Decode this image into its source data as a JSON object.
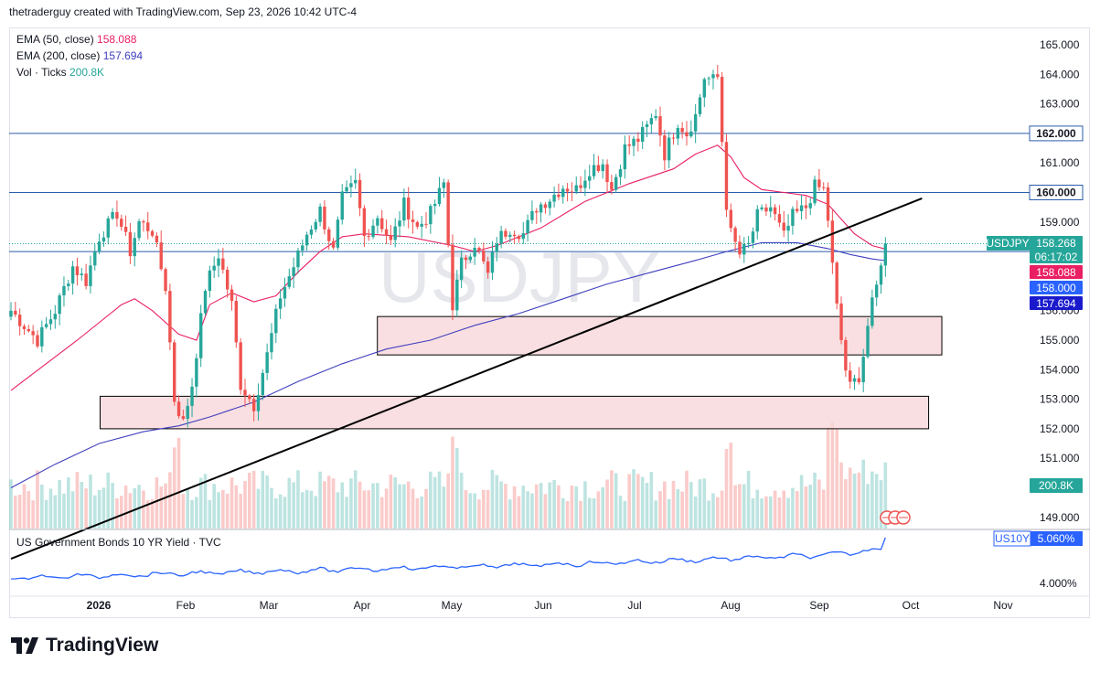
{
  "header": {
    "attribution": "thetraderguy created with TradingView.com, Sep 23, 2026 10:42 UTC-4"
  },
  "legend": {
    "ema50_label": "EMA (50, close)",
    "ema50_value": "158.088",
    "ema200_label": "EMA (200, close)",
    "ema200_value": "157.694",
    "vol_label": "Vol · Ticks",
    "vol_value": "200.8K"
  },
  "watermark": "USDJPY",
  "lower_pane": {
    "label": "US Government Bonds 10 YR Yield · TVC",
    "badge_symbol": "US10Y",
    "badge_value": "5.060%",
    "axis_tick": "4.000%"
  },
  "footer": {
    "brand": "TradingView"
  },
  "colors": {
    "up": "#26a69a",
    "down": "#ef5350",
    "ema50": "#e91e63",
    "ema200": "#3f3fbf",
    "zone": "#f8d7da",
    "hline": "#2a5caa",
    "trend": "#000000",
    "yield": "#2962ff"
  },
  "chart_data": {
    "type": "candlestick",
    "symbol": "USDJPY",
    "y_ticks": [
      149,
      150,
      151,
      152,
      153,
      154,
      155,
      156,
      157,
      158,
      159,
      160,
      161,
      162,
      163,
      164,
      165
    ],
    "y_tick_labels": [
      "149.000",
      "",
      "151.000",
      "152.000",
      "153.000",
      "154.000",
      "155.000",
      "156.000",
      "",
      "",
      "159.000",
      "",
      "161.000",
      "",
      "163.000",
      "164.000",
      "165.000"
    ],
    "x_ticks": [
      "2026",
      "Feb",
      "Mar",
      "Apr",
      "May",
      "Jun",
      "Jul",
      "Aug",
      "Sep",
      "Oct",
      "Nov"
    ],
    "horizontal_levels": [
      {
        "value": 162.0,
        "label": "162.000"
      },
      {
        "value": 160.0,
        "label": "160.000"
      }
    ],
    "zones": [
      {
        "from": 154.5,
        "to": 155.8,
        "start": "2026-04-22",
        "end": "2026-10-10"
      },
      {
        "from": 152.0,
        "to": 153.1,
        "start": "2026-01-28",
        "end": "2026-10-06"
      }
    ],
    "trendline": [
      {
        "date": "2026-01-01",
        "value": 147.6
      },
      {
        "date": "2026-10-04",
        "value": 159.8
      }
    ],
    "price_badges": [
      {
        "symbol": "USDJPY",
        "value": "158.268",
        "countdown": "06:17:02",
        "color": "#26a69a"
      },
      {
        "value": "158.088",
        "color": "#e91e63"
      },
      {
        "value": "158.000",
        "color": "#2962ff"
      },
      {
        "value": "157.694",
        "color": "#1a1acc"
      },
      {
        "value": "200.8K",
        "color": "#26a69a"
      }
    ],
    "price_path": [
      [
        0,
        156.0
      ],
      [
        6,
        155.0
      ],
      [
        10,
        156.0
      ],
      [
        14,
        157.5
      ],
      [
        17,
        157.0
      ],
      [
        20,
        158.5
      ],
      [
        24,
        159.3
      ],
      [
        27,
        158.0
      ],
      [
        29,
        159.0
      ],
      [
        32,
        158.7
      ],
      [
        35,
        156.8
      ],
      [
        37,
        153.0
      ],
      [
        39,
        152.2
      ],
      [
        41,
        153.5
      ],
      [
        44,
        156.8
      ],
      [
        47,
        157.9
      ],
      [
        50,
        156.2
      ],
      [
        52,
        153.5
      ],
      [
        55,
        152.8
      ],
      [
        58,
        154.5
      ],
      [
        61,
        156.5
      ],
      [
        64,
        157.5
      ],
      [
        67,
        158.6
      ],
      [
        70,
        159.4
      ],
      [
        73,
        158.0
      ],
      [
        75,
        159.8
      ],
      [
        78,
        160.3
      ],
      [
        80,
        158.5
      ],
      [
        83,
        159.2
      ],
      [
        86,
        158.3
      ],
      [
        89,
        159.6
      ],
      [
        92,
        158.8
      ],
      [
        95,
        159.3
      ],
      [
        98,
        160.3
      ],
      [
        100,
        156.2
      ],
      [
        102,
        157.6
      ],
      [
        105,
        158.3
      ],
      [
        108,
        157.2
      ],
      [
        110,
        158.4
      ],
      [
        113,
        158.8
      ],
      [
        116,
        158.6
      ],
      [
        119,
        159.5
      ],
      [
        122,
        159.8
      ],
      [
        125,
        160.2
      ],
      [
        128,
        160.1
      ],
      [
        131,
        160.8
      ],
      [
        134,
        161.0
      ],
      [
        136,
        160.1
      ],
      [
        139,
        161.5
      ],
      [
        142,
        161.8
      ],
      [
        144,
        162.2
      ],
      [
        146,
        162.7
      ],
      [
        148,
        161.3
      ],
      [
        151,
        162.4
      ],
      [
        153,
        162.0
      ],
      [
        155,
        162.6
      ],
      [
        157,
        163.9
      ],
      [
        159,
        163.8
      ],
      [
        160,
        163.9
      ],
      [
        162,
        159.6
      ],
      [
        163,
        158.6
      ],
      [
        165,
        157.9
      ],
      [
        167,
        158.2
      ],
      [
        169,
        159.2
      ],
      [
        172,
        159.5
      ],
      [
        175,
        158.5
      ],
      [
        177,
        159.2
      ],
      [
        180,
        159.5
      ],
      [
        182,
        160.2
      ],
      [
        184,
        160.1
      ],
      [
        185,
        159.1
      ],
      [
        186,
        157.5
      ],
      [
        187,
        156.1
      ],
      [
        188,
        155.0
      ],
      [
        189,
        154.0
      ],
      [
        190,
        153.4
      ],
      [
        192,
        153.8
      ],
      [
        193,
        154.5
      ],
      [
        194,
        155.5
      ],
      [
        195,
        156.2
      ],
      [
        196,
        156.8
      ],
      [
        197,
        157.7
      ],
      [
        198,
        158.268
      ]
    ],
    "ema50_path": [
      [
        0,
        153.3
      ],
      [
        15,
        155.0
      ],
      [
        25,
        156.2
      ],
      [
        28,
        156.4
      ],
      [
        32,
        156.0
      ],
      [
        35,
        155.6
      ],
      [
        38,
        155.2
      ],
      [
        42,
        155.0
      ],
      [
        45,
        156.2
      ],
      [
        50,
        156.6
      ],
      [
        55,
        156.3
      ],
      [
        60,
        156.5
      ],
      [
        65,
        157.3
      ],
      [
        70,
        158.0
      ],
      [
        75,
        158.5
      ],
      [
        80,
        158.6
      ],
      [
        90,
        158.5
      ],
      [
        100,
        158.2
      ],
      [
        105,
        158.0
      ],
      [
        110,
        158.2
      ],
      [
        120,
        158.8
      ],
      [
        130,
        159.7
      ],
      [
        140,
        160.3
      ],
      [
        150,
        160.8
      ],
      [
        155,
        161.3
      ],
      [
        160,
        161.6
      ],
      [
        163,
        161.2
      ],
      [
        166,
        160.5
      ],
      [
        170,
        160.1
      ],
      [
        175,
        160.0
      ],
      [
        180,
        159.9
      ],
      [
        185,
        159.6
      ],
      [
        188,
        159.1
      ],
      [
        191,
        158.6
      ],
      [
        195,
        158.2
      ],
      [
        198,
        158.088
      ]
    ],
    "ema200_path": [
      [
        0,
        150.0
      ],
      [
        10,
        150.8
      ],
      [
        20,
        151.5
      ],
      [
        30,
        151.9
      ],
      [
        38,
        152.1
      ],
      [
        45,
        152.4
      ],
      [
        55,
        152.9
      ],
      [
        65,
        153.6
      ],
      [
        75,
        154.2
      ],
      [
        85,
        154.7
      ],
      [
        95,
        155.0
      ],
      [
        105,
        155.5
      ],
      [
        115,
        155.9
      ],
      [
        125,
        156.4
      ],
      [
        135,
        156.9
      ],
      [
        145,
        157.3
      ],
      [
        155,
        157.7
      ],
      [
        162,
        158.0
      ],
      [
        170,
        158.3
      ],
      [
        178,
        158.3
      ],
      [
        185,
        158.1
      ],
      [
        190,
        157.9
      ],
      [
        195,
        157.75
      ],
      [
        198,
        157.694
      ]
    ]
  }
}
